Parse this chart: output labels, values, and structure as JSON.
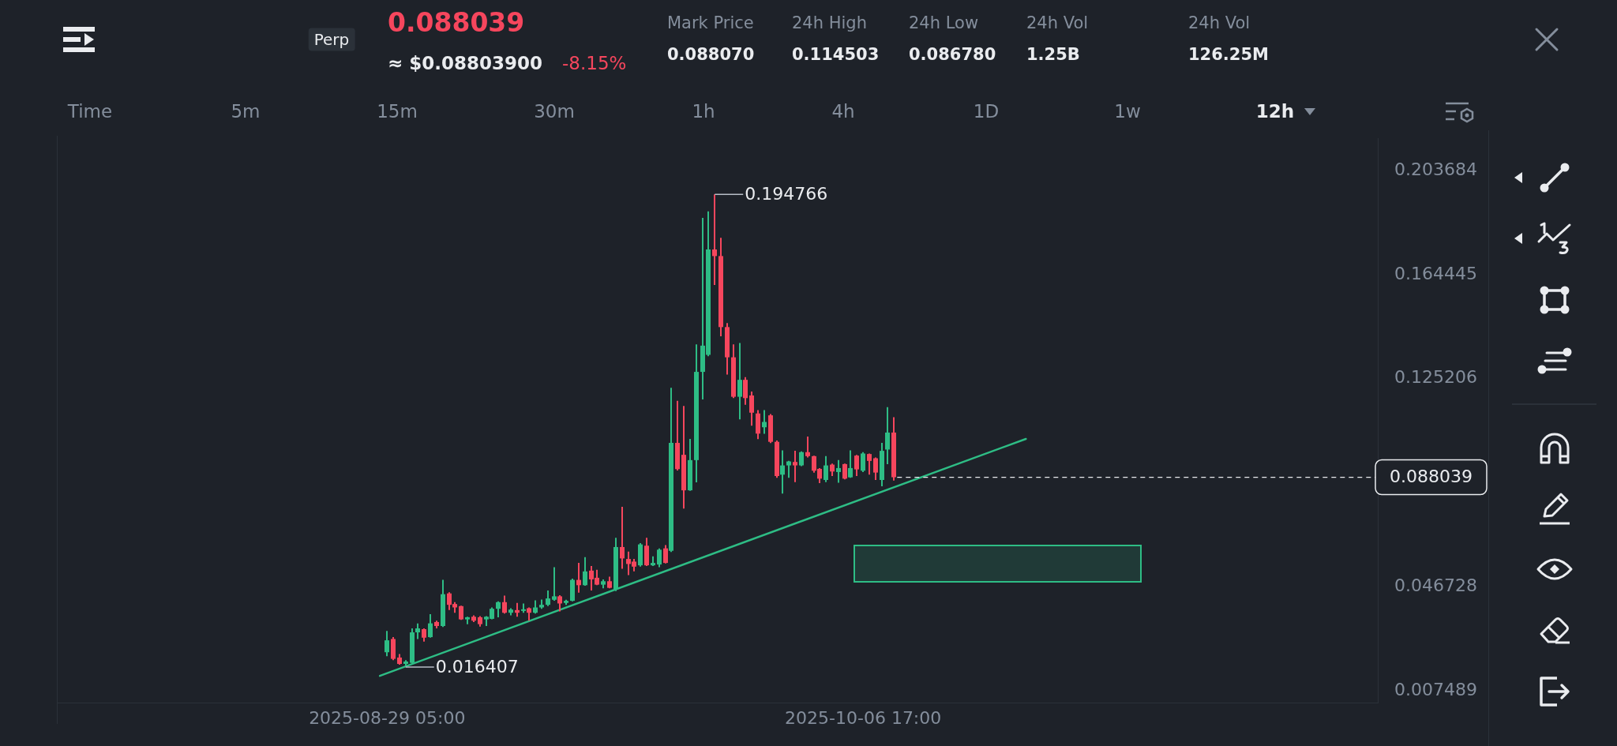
{
  "chart_data": {
    "type": "candlestick",
    "x": [
      "2025-08-29T05:00",
      "2025-08-29T17:00",
      "2025-08-30T05:00",
      "2025-08-30T17:00",
      "2025-08-31T05:00",
      "2025-08-31T17:00",
      "2025-09-01T05:00",
      "2025-09-01T17:00",
      "2025-09-02T05:00",
      "2025-09-02T17:00",
      "2025-09-03T05:00",
      "2025-09-03T17:00",
      "2025-09-04T05:00",
      "2025-09-04T17:00",
      "2025-09-05T05:00",
      "2025-09-05T17:00",
      "2025-09-06T05:00",
      "2025-09-06T17:00",
      "2025-09-07T05:00",
      "2025-09-07T17:00",
      "2025-09-08T05:00",
      "2025-09-08T17:00",
      "2025-09-09T05:00",
      "2025-09-09T17:00",
      "2025-09-10T05:00",
      "2025-09-10T17:00",
      "2025-09-11T05:00",
      "2025-09-11T17:00",
      "2025-09-12T05:00",
      "2025-09-12T17:00",
      "2025-09-13T05:00",
      "2025-09-13T17:00",
      "2025-09-14T05:00",
      "2025-09-14T17:00",
      "2025-09-15T05:00",
      "2025-09-15T17:00",
      "2025-09-16T05:00",
      "2025-09-16T17:00",
      "2025-09-17T05:00",
      "2025-09-17T17:00",
      "2025-09-18T05:00",
      "2025-09-18T17:00",
      "2025-09-19T05:00",
      "2025-09-19T17:00",
      "2025-09-20T05:00",
      "2025-09-20T17:00",
      "2025-09-21T05:00",
      "2025-09-21T17:00",
      "2025-09-22T05:00",
      "2025-09-22T17:00",
      "2025-09-23T05:00",
      "2025-09-23T17:00",
      "2025-09-24T05:00",
      "2025-09-24T17:00",
      "2025-09-25T05:00",
      "2025-09-25T17:00",
      "2025-09-26T05:00",
      "2025-09-26T17:00",
      "2025-09-27T05:00",
      "2025-09-27T17:00",
      "2025-09-28T05:00",
      "2025-09-28T17:00",
      "2025-09-29T05:00",
      "2025-09-29T17:00",
      "2025-09-30T05:00",
      "2025-09-30T17:00",
      "2025-10-01T05:00",
      "2025-10-01T17:00",
      "2025-10-02T05:00",
      "2025-10-02T17:00",
      "2025-10-03T05:00",
      "2025-10-03T17:00",
      "2025-10-04T05:00",
      "2025-10-04T17:00",
      "2025-10-05T05:00",
      "2025-10-05T17:00",
      "2025-10-06T05:00",
      "2025-10-06T17:00",
      "2025-10-07T05:00",
      "2025-10-07T17:00",
      "2025-10-08T05:00",
      "2025-10-08T17:00",
      "2025-10-09T05:00"
    ],
    "ohlc": [
      [
        0.022,
        0.03,
        0.0205,
        0.0265
      ],
      [
        0.027,
        0.0277,
        0.019,
        0.0195
      ],
      [
        0.02,
        0.0213,
        0.0173,
        0.0176
      ],
      [
        0.0176,
        0.019,
        0.016407,
        0.0185
      ],
      [
        0.018,
        0.031,
        0.0178,
        0.0295
      ],
      [
        0.0295,
        0.0329,
        0.027,
        0.031
      ],
      [
        0.0307,
        0.031,
        0.026,
        0.0275
      ],
      [
        0.0277,
        0.0364,
        0.0275,
        0.0329
      ],
      [
        0.0334,
        0.0339,
        0.031,
        0.0319
      ],
      [
        0.0319,
        0.0493,
        0.0315,
        0.0439
      ],
      [
        0.0442,
        0.0446,
        0.0379,
        0.0399
      ],
      [
        0.0402,
        0.0409,
        0.0369,
        0.0389
      ],
      [
        0.0394,
        0.0396,
        0.0342,
        0.0344
      ],
      [
        0.0344,
        0.0354,
        0.0326,
        0.0352
      ],
      [
        0.0354,
        0.0359,
        0.0334,
        0.0339
      ],
      [
        0.0352,
        0.0356,
        0.0317,
        0.0326
      ],
      [
        0.0344,
        0.0356,
        0.0319,
        0.0354
      ],
      [
        0.0346,
        0.0389,
        0.0344,
        0.0384
      ],
      [
        0.0384,
        0.0412,
        0.0352,
        0.0409
      ],
      [
        0.0409,
        0.0434,
        0.0366,
        0.0369
      ],
      [
        0.0369,
        0.0386,
        0.0359,
        0.0381
      ],
      [
        0.0379,
        0.0406,
        0.0354,
        0.0369
      ],
      [
        0.0376,
        0.0404,
        0.0369,
        0.0382
      ],
      [
        0.0386,
        0.0389,
        0.0339,
        0.0369
      ],
      [
        0.0369,
        0.0416,
        0.0366,
        0.0389
      ],
      [
        0.0389,
        0.0419,
        0.0384,
        0.0399
      ],
      [
        0.0399,
        0.0453,
        0.0394,
        0.0423
      ],
      [
        0.0418,
        0.0541,
        0.0414,
        0.0431
      ],
      [
        0.0431,
        0.0435,
        0.0374,
        0.0404
      ],
      [
        0.0406,
        0.0418,
        0.0399,
        0.0414
      ],
      [
        0.0414,
        0.0498,
        0.0412,
        0.0493
      ],
      [
        0.0493,
        0.0557,
        0.0445,
        0.0473
      ],
      [
        0.0473,
        0.0579,
        0.0471,
        0.0525
      ],
      [
        0.0528,
        0.0545,
        0.0453,
        0.0495
      ],
      [
        0.0501,
        0.0531,
        0.0473,
        0.0475
      ],
      [
        0.0475,
        0.0495,
        0.0461,
        0.0488
      ],
      [
        0.0488,
        0.0505,
        0.0461,
        0.0463
      ],
      [
        0.0458,
        0.0652,
        0.0451,
        0.0617
      ],
      [
        0.0617,
        0.0769,
        0.0535,
        0.0574
      ],
      [
        0.0572,
        0.06,
        0.0511,
        0.0553
      ],
      [
        0.0562,
        0.0572,
        0.0525,
        0.0543
      ],
      [
        0.0548,
        0.0632,
        0.0543,
        0.0627
      ],
      [
        0.0622,
        0.0652,
        0.0545,
        0.0548
      ],
      [
        0.0548,
        0.0582,
        0.0545,
        0.0557
      ],
      [
        0.0551,
        0.0612,
        0.0541,
        0.0607
      ],
      [
        0.0612,
        0.0624,
        0.0555,
        0.0557
      ],
      [
        0.0603,
        0.1218,
        0.0598,
        0.101
      ],
      [
        0.101,
        0.1169,
        0.0906,
        0.0911
      ],
      [
        0.0965,
        0.1149,
        0.0762,
        0.0831
      ],
      [
        0.0831,
        0.1025,
        0.0829,
        0.0945
      ],
      [
        0.0945,
        0.1382,
        0.0861,
        0.1278
      ],
      [
        0.1278,
        0.1859,
        0.1174,
        0.1377
      ],
      [
        0.1342,
        0.1884,
        0.1337,
        0.174
      ],
      [
        0.174,
        0.194766,
        0.1606,
        0.1715
      ],
      [
        0.1715,
        0.1784,
        0.1412,
        0.1447
      ],
      [
        0.1447,
        0.1462,
        0.1268,
        0.1333
      ],
      [
        0.1333,
        0.1382,
        0.1179,
        0.1184
      ],
      [
        0.1184,
        0.1387,
        0.1099,
        0.1248
      ],
      [
        0.1248,
        0.1258,
        0.1154,
        0.1179
      ],
      [
        0.1189,
        0.1204,
        0.1075,
        0.1124
      ],
      [
        0.1121,
        0.1134,
        0.1024,
        0.1045
      ],
      [
        0.1069,
        0.1134,
        0.1044,
        0.1089
      ],
      [
        0.1114,
        0.1119,
        0.1009,
        0.1014
      ],
      [
        0.1014,
        0.1019,
        0.0878,
        0.0885
      ],
      [
        0.089,
        0.0982,
        0.0819,
        0.0925
      ],
      [
        0.0925,
        0.0942,
        0.0878,
        0.094
      ],
      [
        0.0938,
        0.098,
        0.0862,
        0.0925
      ],
      [
        0.0925,
        0.0978,
        0.0922,
        0.0975
      ],
      [
        0.0975,
        0.1034,
        0.0955,
        0.096
      ],
      [
        0.096,
        0.0962,
        0.0898,
        0.0905
      ],
      [
        0.0912,
        0.0915,
        0.0858,
        0.0875
      ],
      [
        0.087,
        0.096,
        0.0862,
        0.0925
      ],
      [
        0.0928,
        0.0932,
        0.0885,
        0.0902
      ],
      [
        0.09,
        0.0945,
        0.086,
        0.0915
      ],
      [
        0.093,
        0.0932,
        0.0872,
        0.0875
      ],
      [
        0.088,
        0.0982,
        0.0878,
        0.0915
      ],
      [
        0.0962,
        0.0965,
        0.0885,
        0.091
      ],
      [
        0.0905,
        0.0975,
        0.09,
        0.097
      ],
      [
        0.0968,
        0.097,
        0.089,
        0.0942
      ],
      [
        0.0952,
        0.0955,
        0.087,
        0.0898
      ],
      [
        0.087,
        0.101,
        0.0846,
        0.098
      ],
      [
        0.0985,
        0.1145,
        0.093,
        0.1049
      ],
      [
        0.1049,
        0.1107,
        0.0868,
        0.088039
      ]
    ],
    "colors": [
      "#2ebd85",
      "#f6465d",
      "#f6465d",
      "#2ebd85",
      "#2ebd85",
      "#2ebd85",
      "#f6465d",
      "#2ebd85",
      "#f6465d",
      "#2ebd85",
      "#f6465d",
      "#f6465d",
      "#f6465d",
      "#2ebd85",
      "#f6465d",
      "#f6465d",
      "#2ebd85",
      "#2ebd85",
      "#2ebd85",
      "#f6465d",
      "#2ebd85",
      "#f6465d",
      "#2ebd85",
      "#f6465d",
      "#2ebd85",
      "#2ebd85",
      "#2ebd85",
      "#2ebd85",
      "#f6465d",
      "#2ebd85",
      "#2ebd85",
      "#f6465d",
      "#2ebd85",
      "#f6465d",
      "#f6465d",
      "#2ebd85",
      "#f6465d",
      "#2ebd85",
      "#f6465d",
      "#f6465d",
      "#f6465d",
      "#2ebd85",
      "#f6465d",
      "#2ebd85",
      "#2ebd85",
      "#f6465d",
      "#2ebd85",
      "#f6465d",
      "#f6465d",
      "#2ebd85",
      "#2ebd85",
      "#2ebd85",
      "#2ebd85",
      "#f6465d",
      "#f6465d",
      "#f6465d",
      "#f6465d",
      "#2ebd85",
      "#f6465d",
      "#f6465d",
      "#f6465d",
      "#2ebd85",
      "#f6465d",
      "#f6465d",
      "#2ebd85",
      "#2ebd85",
      "#f6465d",
      "#2ebd85",
      "#f6465d",
      "#f6465d",
      "#f6465d",
      "#2ebd85",
      "#f6465d",
      "#2ebd85",
      "#f6465d",
      "#2ebd85",
      "#f6465d",
      "#2ebd85",
      "#f6465d",
      "#f6465d",
      "#2ebd85",
      "#2ebd85",
      "#f6465d"
    ],
    "series": [
      {
        "type": "line",
        "color": "#2ebd85",
        "x": [
          "2025-08-28T15:00",
          "2025-10-19T21:00"
        ],
        "values": [
          0.0131,
          0.1025
        ]
      }
    ],
    "xlim": [
      "2025-08-02T12:00",
      "2025-11-17T08:00"
    ],
    "xticks": [
      {
        "value": "2025-08-29T05:00",
        "label": "2025-08-29 05:00"
      },
      {
        "value": "2025-10-06T17:00",
        "label": "2025-10-06 17:00"
      }
    ],
    "ylim": [
      0.003,
      0.216
    ],
    "yticks": [
      0.007489,
      0.046728,
      0.125206,
      0.164445,
      0.203684
    ],
    "ref_lines": [
      {
        "axis": "y",
        "value": 0.088039,
        "label": "0.088039",
        "line_style": "dashed",
        "color": "#eaecef"
      }
    ],
    "annotations": [
      "Perp",
      "0.088039",
      "≈ $0.08803900",
      "-8.15%",
      "Mark Price",
      "0.088070",
      "24h High",
      "0.114503",
      "24h Low",
      "0.086780",
      "24h Vol",
      "1.25B",
      "24h Vol",
      "126.25M",
      "Time",
      "5m",
      "15m",
      "30m",
      "1h",
      "4h",
      "1D",
      "1w",
      "12h",
      {
        "text": "0.194766",
        "x": "2025-09-24T17:00",
        "y": 0.194766
      },
      {
        "text": "0.016407",
        "x": "2025-08-30T17:00",
        "y": 0.016407
      }
    ]
  }
}
